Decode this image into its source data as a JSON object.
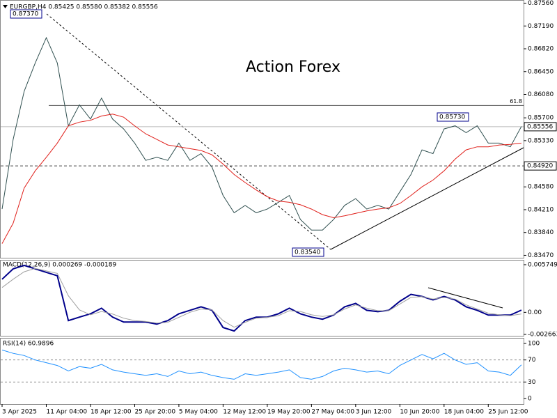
{
  "chart_data": [
    {
      "type": "line",
      "title": "EURGBP,H4  0.85425 0.85580 0.85382 0.85556",
      "watermark": "Action Forex",
      "categories": [
        "3 Apr 2025",
        null,
        null,
        null,
        "11 Apr 04:00",
        null,
        null,
        null,
        "18 Apr 12:00",
        null,
        null,
        null,
        "25 Apr 20:00",
        null,
        null,
        null,
        "5 May 04:00",
        null,
        null,
        null,
        "12 May 12:00",
        null,
        null,
        null,
        "19 May 20:00",
        null,
        null,
        null,
        "27 May 04:00",
        null,
        null,
        null,
        "3 Jun 12:00",
        null,
        null,
        null,
        "10 Jun 20:00",
        null,
        null,
        null,
        "18 Jun 04:00",
        null,
        null,
        null,
        "25 Jun 12:00",
        null,
        null,
        null
      ],
      "series": [
        {
          "color": "#2f4f4f",
          "values": [
            0.8422,
            0.8535,
            0.8613,
            0.8659,
            0.87,
            0.8659,
            0.8557,
            0.8591,
            0.8568,
            0.8602,
            0.8568,
            0.8552,
            0.8529,
            0.8501,
            0.8506,
            0.8501,
            0.8529,
            0.8501,
            0.8512,
            0.849,
            0.8444,
            0.8416,
            0.8428,
            0.8416,
            0.8422,
            0.8433,
            0.8444,
            0.8405,
            0.8388,
            0.8388,
            0.8405,
            0.8428,
            0.8439,
            0.8422,
            0.8428,
            0.8422,
            0.845,
            0.8478,
            0.8518,
            0.8512,
            0.8552,
            0.8557,
            0.8546,
            0.8557,
            0.8529,
            0.8529,
            0.8523,
            0.8556
          ]
        },
        {
          "color": "#e0201b",
          "values": [
            0.8366,
            0.8399,
            0.8456,
            0.8484,
            0.8506,
            0.8529,
            0.8557,
            0.8563,
            0.8566,
            0.8573,
            0.8576,
            0.8571,
            0.8557,
            0.8544,
            0.8535,
            0.8526,
            0.8523,
            0.852,
            0.8517,
            0.851,
            0.8495,
            0.8478,
            0.8465,
            0.8453,
            0.8442,
            0.8435,
            0.8433,
            0.8429,
            0.8422,
            0.8413,
            0.8408,
            0.8411,
            0.8415,
            0.8419,
            0.8422,
            0.8424,
            0.8431,
            0.8444,
            0.8458,
            0.8469,
            0.8484,
            0.8503,
            0.8518,
            0.8523,
            0.8523,
            0.8526,
            0.8527,
            0.8529
          ]
        }
      ],
      "ylim": [
        0.8343,
        0.876
      ],
      "yticks": [
        {
          "value": 0.8756,
          "label": "0.87560"
        },
        {
          "value": 0.8719,
          "label": "0.87190"
        },
        {
          "value": 0.8682,
          "label": "0.86820"
        },
        {
          "value": 0.8645,
          "label": "0.86450"
        },
        {
          "value": 0.8608,
          "label": "0.86080"
        },
        {
          "value": 0.857,
          "label": "0.85700"
        },
        {
          "value": 0.8533,
          "label": "0.85330"
        },
        {
          "value": 0.8458,
          "label": "0.84580"
        },
        {
          "value": 0.8421,
          "label": "0.84210"
        },
        {
          "value": 0.8384,
          "label": "0.83840"
        },
        {
          "value": 0.8347,
          "label": "0.83470"
        }
      ],
      "levels": [
        {
          "value": 0.859,
          "label": "61.8"
        }
      ],
      "price_labels": [
        {
          "value": 0.85556,
          "label": "0.85556",
          "dashed": false
        },
        {
          "value": 0.8492,
          "label": "0.84920",
          "dashed": true
        }
      ],
      "annotations": [
        "0.87370",
        "0.85730",
        "0.83540"
      ]
    },
    {
      "type": "line",
      "title": "MACD(12,26,9) 0.000269 -0.000189",
      "series": [
        {
          "color": "#00008b",
          "values": [
            0.004,
            0.00525,
            0.00567,
            0.00525,
            0.00483,
            0.00442,
            -0.001,
            -0.00058,
            -0.00017,
            0.0005,
            -0.00058,
            -0.00117,
            -0.00117,
            -0.00117,
            -0.00142,
            -0.001,
            -0.00017,
            0.00025,
            0.00067,
            0.00025,
            -0.00183,
            -0.00225,
            -0.001,
            -0.00058,
            -0.00058,
            -0.00017,
            0.0005,
            -0.00017,
            -0.00058,
            -0.00083,
            -0.00033,
            0.00067,
            0.00108,
            0.00025,
            8e-05,
            0.00025,
            0.00133,
            0.00217,
            0.00192,
            0.0015,
            0.00192,
            0.0015,
            0.00067,
            0.00025,
            -0.00033,
            -0.00033,
            -0.00033,
            0.000269
          ]
        },
        {
          "color": "#a0a0a0",
          "values": [
            0.003,
            0.004,
            0.0049,
            0.0053,
            0.005,
            0.0047,
            0.002,
            0.0003,
            -0.0003,
            0.0001,
            -0.0002,
            -0.0007,
            -0.001,
            -0.0011,
            -0.0013,
            -0.0012,
            -0.0006,
            0.0,
            0.0004,
            0.0003,
            -0.001,
            -0.0018,
            -0.0012,
            -0.0007,
            -0.0006,
            -0.0004,
            0.0002,
            0.0001,
            -0.0003,
            -0.0005,
            -0.0003,
            0.0004,
            0.0009,
            0.0005,
            0.0002,
            0.0002,
            0.001,
            0.0018,
            0.0019,
            0.0016,
            0.0018,
            0.0016,
            0.0009,
            0.0004,
            -0.0001,
            -0.0003,
            -0.0004,
            -0.000189
          ]
        }
      ],
      "ylim": [
        -0.00283,
        0.00625
      ],
      "yticks": [
        0.005749,
        {
          "value": 0,
          "label": "0.00"
        },
        -0.002663
      ]
    },
    {
      "type": "line",
      "title": "RSI(14) 60.9896",
      "series": [
        {
          "color": "#1e90ff",
          "values": [
            88,
            82,
            78,
            70,
            65,
            60,
            50,
            58,
            55,
            62,
            52,
            48,
            45,
            42,
            45,
            40,
            50,
            45,
            48,
            42,
            38,
            35,
            45,
            42,
            45,
            48,
            52,
            38,
            35,
            40,
            50,
            55,
            52,
            48,
            50,
            45,
            60,
            70,
            80,
            72,
            82,
            70,
            62,
            65,
            50,
            48,
            42,
            60.9896
          ]
        }
      ],
      "ylim": [
        -10,
        108.75
      ],
      "yticks": [
        100,
        70,
        30,
        0
      ],
      "levels": [
        {
          "value": 70
        },
        {
          "value": 30
        }
      ]
    }
  ]
}
